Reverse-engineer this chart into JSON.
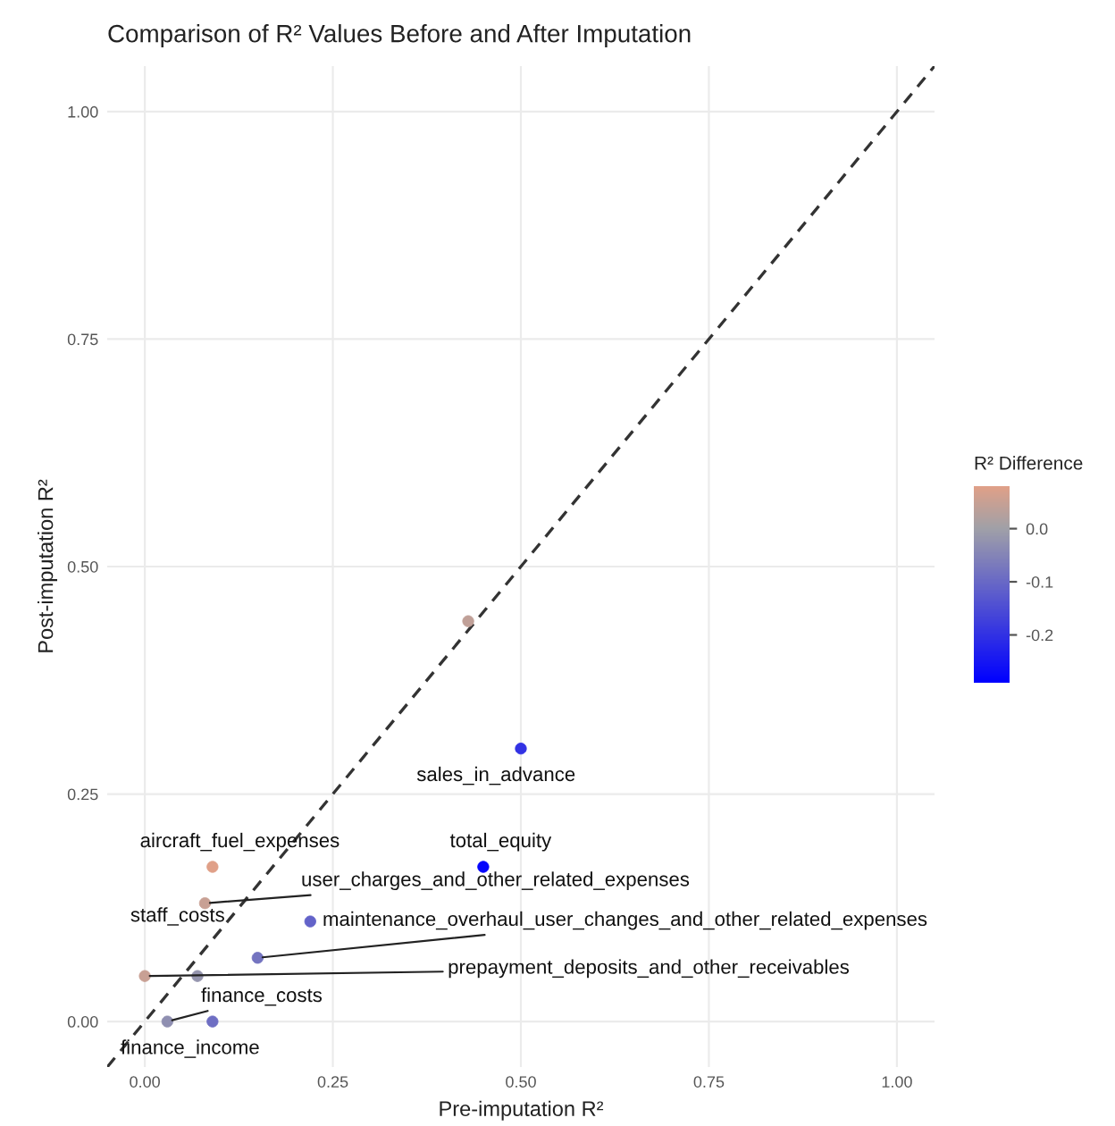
{
  "chart_data": {
    "type": "scatter",
    "title": "Comparison of R² Values Before and After Imputation",
    "xlabel": "Pre-imputation R²",
    "ylabel": "Post-imputation R²",
    "clabel": "R² Difference",
    "series": [
      {
        "type": "line",
        "x": [
          -0.05,
          1.05
        ],
        "values": [
          -0.05,
          1.05
        ],
        "color": "#333333",
        "line_style": "dashed"
      },
      {
        "type": "scatter",
        "x": [
          0.5,
          0.45,
          0.09,
          0.08,
          0.07,
          0.15,
          0.0,
          0.03,
          0.09,
          0.22,
          0.43
        ],
        "values": [
          0.3,
          0.17,
          0.17,
          0.13,
          0.05,
          0.07,
          0.05,
          0.0,
          0.0,
          0.11,
          0.44
        ],
        "colors": [
          "#3232e4",
          "#0606fc",
          "#e0a088",
          "#c8a094",
          "#9595ae",
          "#7474c0",
          "#c8a094",
          "#8f8fb1",
          "#6e6ec3",
          "#6363c9",
          "#c0a098"
        ],
        "cvalues": [
          -0.2,
          -0.28,
          0.08,
          0.05,
          -0.02,
          -0.08,
          0.05,
          -0.03,
          -0.09,
          -0.11,
          0.04
        ]
      }
    ],
    "annotations": [
      {
        "text": "sales_in_advance",
        "x": 0.5,
        "y": 0.3
      },
      {
        "text": "total_equity",
        "x": 0.45,
        "y": 0.17
      },
      {
        "text": "aircraft_fuel_expenses",
        "x": 0.09,
        "y": 0.17
      },
      {
        "text": "user_charges_and_other_related_expenses",
        "x": 0.08,
        "y": 0.13
      },
      {
        "text": "staff_costs",
        "x": 0.07,
        "y": 0.05
      },
      {
        "text": "maintenance_overhaul_user_changes_and_other_related_expenses",
        "x": 0.15,
        "y": 0.07
      },
      {
        "text": "prepayment_deposits_and_other_receivables",
        "x": 0.0,
        "y": 0.05
      },
      {
        "text": "finance_costs",
        "x": 0.03,
        "y": 0.0
      },
      {
        "text": "finance_income",
        "x": 0.09,
        "y": 0.0
      }
    ],
    "xlim": [
      -0.05,
      1.05
    ],
    "ylim": [
      -0.05,
      1.05
    ],
    "xticks": [
      {
        "value": 0,
        "label": "0.00"
      },
      0.25,
      {
        "value": 0.5,
        "label": "0.50"
      },
      0.75,
      {
        "value": 1,
        "label": "1.00"
      }
    ],
    "yticks": [
      {
        "value": 0,
        "label": "0.00"
      },
      0.25,
      {
        "value": 0.5,
        "label": "0.50"
      },
      0.75,
      {
        "value": 1,
        "label": "1.00"
      }
    ],
    "clim": [
      -0.29,
      0.08
    ],
    "cticks": [
      {
        "value": 0,
        "label": "0.0"
      },
      -0.1,
      -0.2
    ],
    "grid": true
  }
}
